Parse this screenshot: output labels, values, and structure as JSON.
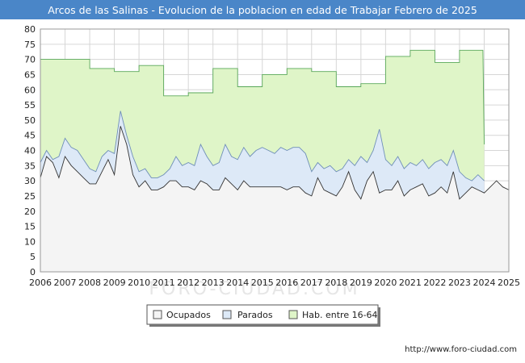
{
  "chart_data": {
    "type": "area",
    "title": "Arcos de las Salinas - Evolucion de la poblacion en edad de Trabajar Febrero de 2025",
    "xlabel": "",
    "ylabel": "",
    "xlim": [
      2006,
      2025
    ],
    "ylim": [
      0,
      80
    ],
    "yticks": [
      0,
      5,
      10,
      15,
      20,
      25,
      30,
      35,
      40,
      45,
      50,
      55,
      60,
      65,
      70,
      75,
      80
    ],
    "xticks": [
      2006,
      2007,
      2008,
      2009,
      2010,
      2011,
      2012,
      2013,
      2014,
      2015,
      2016,
      2017,
      2018,
      2019,
      2020,
      2021,
      2022,
      2023,
      2024,
      2025
    ],
    "grid": true,
    "legend_position": "bottom-center",
    "series": [
      {
        "name": "Hab. entre 16-64",
        "color_fill": "#dff5c8",
        "color_line": "#5aa85a",
        "x": [
          2006.0,
          2008.0,
          2008.0,
          2009.0,
          2009.0,
          2010.0,
          2010.0,
          2011.0,
          2011.0,
          2012.0,
          2012.0,
          2013.0,
          2013.0,
          2014.0,
          2014.0,
          2015.0,
          2015.0,
          2016.0,
          2016.0,
          2017.0,
          2017.0,
          2018.0,
          2018.0,
          2019.0,
          2019.0,
          2020.0,
          2020.0,
          2021.0,
          2021.0,
          2022.0,
          2022.0,
          2023.0,
          2023.0,
          2023.95,
          2024.0
        ],
        "values": [
          70,
          70,
          67,
          67,
          66,
          66,
          68,
          68,
          58,
          58,
          59,
          59,
          67,
          67,
          61,
          61,
          65,
          65,
          67,
          67,
          66,
          66,
          61,
          61,
          62,
          62,
          71,
          71,
          73,
          73,
          69,
          69,
          73,
          73,
          42
        ]
      },
      {
        "name": "Parados",
        "color_fill": "#dde9f7",
        "color_line": "#6f8fb8",
        "x": [
          2006.0,
          2006.25,
          2006.5,
          2006.75,
          2007.0,
          2007.25,
          2007.5,
          2007.75,
          2008.0,
          2008.25,
          2008.5,
          2008.75,
          2009.0,
          2009.25,
          2009.5,
          2009.75,
          2010.0,
          2010.25,
          2010.5,
          2010.75,
          2011.0,
          2011.25,
          2011.5,
          2011.75,
          2012.0,
          2012.25,
          2012.5,
          2012.75,
          2013.0,
          2013.25,
          2013.5,
          2013.75,
          2014.0,
          2014.25,
          2014.5,
          2014.75,
          2015.0,
          2015.25,
          2015.5,
          2015.75,
          2016.0,
          2016.25,
          2016.5,
          2016.75,
          2017.0,
          2017.25,
          2017.5,
          2017.75,
          2018.0,
          2018.25,
          2018.5,
          2018.75,
          2019.0,
          2019.25,
          2019.5,
          2019.75,
          2020.0,
          2020.25,
          2020.5,
          2020.75,
          2021.0,
          2021.25,
          2021.5,
          2021.75,
          2022.0,
          2022.25,
          2022.5,
          2022.75,
          2023.0,
          2023.25,
          2023.5,
          2023.75,
          2024.0
        ],
        "values": [
          36,
          40,
          37,
          38,
          44,
          41,
          40,
          37,
          34,
          33,
          38,
          40,
          39,
          53,
          45,
          38,
          33,
          34,
          31,
          31,
          32,
          34,
          38,
          35,
          36,
          35,
          42,
          38,
          35,
          36,
          42,
          38,
          37,
          41,
          38,
          40,
          41,
          40,
          39,
          41,
          40,
          41,
          41,
          39,
          33,
          36,
          34,
          35,
          33,
          34,
          37,
          35,
          38,
          36,
          40,
          47,
          37,
          35,
          38,
          34,
          36,
          35,
          37,
          34,
          36,
          37,
          35,
          40,
          33,
          31,
          30,
          32,
          30
        ]
      },
      {
        "name": "Ocupados",
        "color_fill": "#f4f4f4",
        "color_line": "#333333",
        "x": [
          2006.0,
          2006.25,
          2006.5,
          2006.75,
          2007.0,
          2007.25,
          2007.5,
          2007.75,
          2008.0,
          2008.25,
          2008.5,
          2008.75,
          2009.0,
          2009.25,
          2009.5,
          2009.75,
          2010.0,
          2010.25,
          2010.5,
          2010.75,
          2011.0,
          2011.25,
          2011.5,
          2011.75,
          2012.0,
          2012.25,
          2012.5,
          2012.75,
          2013.0,
          2013.25,
          2013.5,
          2013.75,
          2014.0,
          2014.25,
          2014.5,
          2014.75,
          2015.0,
          2015.25,
          2015.5,
          2015.75,
          2016.0,
          2016.25,
          2016.5,
          2016.75,
          2017.0,
          2017.25,
          2017.5,
          2017.75,
          2018.0,
          2018.25,
          2018.5,
          2018.75,
          2019.0,
          2019.25,
          2019.5,
          2019.75,
          2020.0,
          2020.25,
          2020.5,
          2020.75,
          2021.0,
          2021.25,
          2021.5,
          2021.75,
          2022.0,
          2022.25,
          2022.5,
          2022.75,
          2023.0,
          2023.25,
          2023.5,
          2023.75,
          2024.0,
          2024.25,
          2024.5,
          2024.75,
          2025.0
        ],
        "values": [
          31,
          38,
          36,
          31,
          38,
          35,
          33,
          31,
          29,
          29,
          33,
          37,
          32,
          48,
          42,
          32,
          28,
          30,
          27,
          27,
          28,
          30,
          30,
          28,
          28,
          27,
          30,
          29,
          27,
          27,
          31,
          29,
          27,
          30,
          28,
          28,
          28,
          28,
          28,
          28,
          27,
          28,
          28,
          26,
          25,
          31,
          27,
          26,
          25,
          28,
          33,
          27,
          24,
          30,
          33,
          26,
          27,
          27,
          30,
          25,
          27,
          28,
          29,
          25,
          26,
          28,
          26,
          33,
          24,
          26,
          28,
          27,
          26,
          28,
          30,
          28,
          27
        ]
      }
    ]
  },
  "legend": {
    "items": [
      {
        "label": "Ocupados",
        "swatch": "#f4f4f4"
      },
      {
        "label": "Parados",
        "swatch": "#dde9f7"
      },
      {
        "label": "Hab. entre 16-64",
        "swatch": "#dff5c8"
      }
    ]
  },
  "footer": {
    "credit": "http://www.foro-ciudad.com",
    "watermark": "FORO-CIUDAD.COM"
  }
}
